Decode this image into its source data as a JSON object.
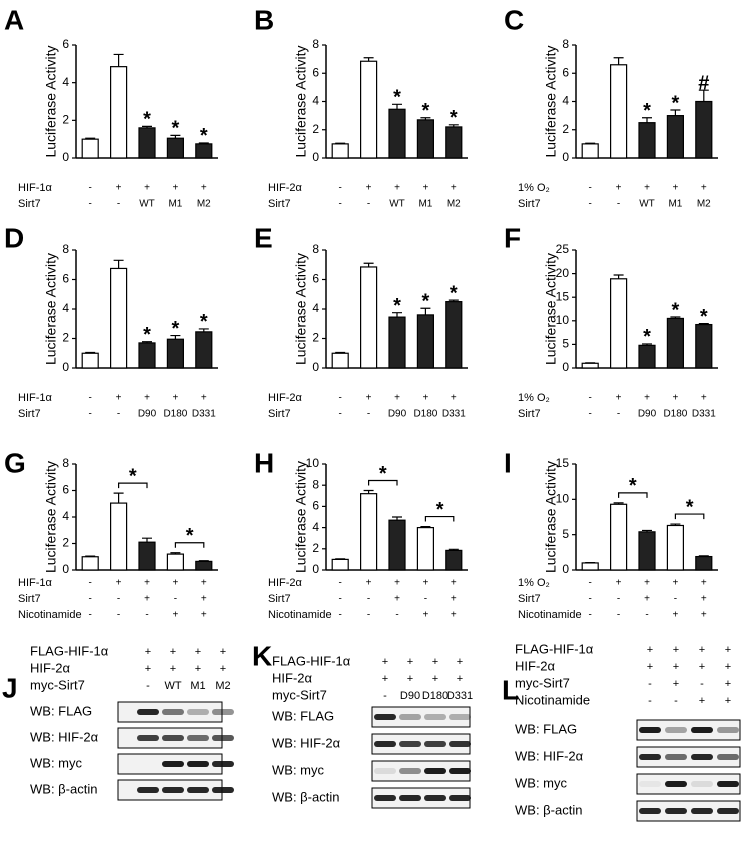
{
  "chart_data": [
    {
      "type": "bar",
      "panel": "A",
      "ylabel": "Luciferase Activity",
      "ylim": [
        0,
        6
      ],
      "yticks": [
        0,
        2,
        4,
        6
      ],
      "values": [
        1,
        4.85,
        1.6,
        1.05,
        0.75
      ],
      "errors": [
        0.05,
        0.65,
        0.08,
        0.15,
        0.05
      ],
      "colors": [
        "#ffffff",
        "#ffffff",
        "#222222",
        "#222222",
        "#222222"
      ],
      "conditions": [
        {
          "name": "HIF-1α",
          "values": [
            "-",
            "+",
            "+",
            "+",
            "+"
          ]
        },
        {
          "name": "Sirt7",
          "values": [
            "-",
            "-",
            "WT",
            "M1",
            "M2"
          ]
        }
      ],
      "annotations": [
        null,
        null,
        "*",
        "*",
        "*"
      ]
    },
    {
      "type": "bar",
      "panel": "B",
      "ylabel": "Luciferase Activity",
      "ylim": [
        0,
        8
      ],
      "yticks": [
        0,
        2,
        4,
        6,
        8
      ],
      "values": [
        1,
        6.85,
        3.45,
        2.7,
        2.2
      ],
      "errors": [
        0.05,
        0.25,
        0.35,
        0.15,
        0.15
      ],
      "colors": [
        "#ffffff",
        "#ffffff",
        "#222222",
        "#222222",
        "#222222"
      ],
      "conditions": [
        {
          "name": "HIF-2α",
          "values": [
            "-",
            "+",
            "+",
            "+",
            "+"
          ]
        },
        {
          "name": "Sirt7",
          "values": [
            "-",
            "-",
            "WT",
            "M1",
            "M2"
          ]
        }
      ],
      "annotations": [
        null,
        null,
        "*",
        "*",
        "*"
      ]
    },
    {
      "type": "bar",
      "panel": "C",
      "ylabel": "Luciferase Activity",
      "ylim": [
        0,
        8
      ],
      "yticks": [
        0,
        2,
        4,
        6,
        8
      ],
      "values": [
        1,
        6.6,
        2.5,
        3.0,
        4.0
      ],
      "errors": [
        0.05,
        0.5,
        0.35,
        0.4,
        0.8
      ],
      "colors": [
        "#ffffff",
        "#ffffff",
        "#222222",
        "#222222",
        "#222222"
      ],
      "conditions": [
        {
          "name": "1% O₂",
          "values": [
            "-",
            "+",
            "+",
            "+",
            "+"
          ]
        },
        {
          "name": "Sirt7",
          "values": [
            "-",
            "-",
            "WT",
            "M1",
            "M2"
          ]
        }
      ],
      "annotations": [
        null,
        null,
        "*",
        "*",
        "#"
      ]
    },
    {
      "type": "bar",
      "panel": "D",
      "ylabel": "Luciferase Activity",
      "ylim": [
        0,
        8
      ],
      "yticks": [
        0,
        2,
        4,
        6,
        8
      ],
      "values": [
        1,
        6.75,
        1.7,
        1.95,
        2.45
      ],
      "errors": [
        0.05,
        0.55,
        0.08,
        0.25,
        0.2
      ],
      "colors": [
        "#ffffff",
        "#ffffff",
        "#222222",
        "#222222",
        "#222222"
      ],
      "conditions": [
        {
          "name": "HIF-1α",
          "values": [
            "-",
            "+",
            "+",
            "+",
            "+"
          ]
        },
        {
          "name": "Sirt7",
          "values": [
            "-",
            "-",
            "D90",
            "D180",
            "D331"
          ]
        }
      ],
      "annotations": [
        null,
        null,
        "*",
        "*",
        "*"
      ]
    },
    {
      "type": "bar",
      "panel": "E",
      "ylabel": "Luciferase Activity",
      "ylim": [
        0,
        8
      ],
      "yticks": [
        0,
        2,
        4,
        6,
        8
      ],
      "values": [
        1,
        6.85,
        3.45,
        3.6,
        4.5
      ],
      "errors": [
        0.05,
        0.25,
        0.3,
        0.45,
        0.1
      ],
      "colors": [
        "#ffffff",
        "#ffffff",
        "#222222",
        "#222222",
        "#222222"
      ],
      "conditions": [
        {
          "name": "HIF-2α",
          "values": [
            "-",
            "+",
            "+",
            "+",
            "+"
          ]
        },
        {
          "name": "Sirt7",
          "values": [
            "-",
            "-",
            "D90",
            "D180",
            "D331"
          ]
        }
      ],
      "annotations": [
        null,
        null,
        "*",
        "*",
        "*"
      ]
    },
    {
      "type": "bar",
      "panel": "F",
      "ylabel": "Luciferase Activity",
      "ylim": [
        0,
        25
      ],
      "yticks": [
        0,
        5,
        10,
        15,
        20,
        25
      ],
      "values": [
        1,
        18.9,
        4.8,
        10.5,
        9.2
      ],
      "errors": [
        0.1,
        0.8,
        0.3,
        0.3,
        0.2
      ],
      "colors": [
        "#ffffff",
        "#ffffff",
        "#222222",
        "#222222",
        "#222222"
      ],
      "conditions": [
        {
          "name": "1% O₂",
          "values": [
            "-",
            "+",
            "+",
            "+",
            "+"
          ]
        },
        {
          "name": "Sirt7",
          "values": [
            "-",
            "-",
            "D90",
            "D180",
            "D331"
          ]
        }
      ],
      "annotations": [
        null,
        null,
        "*",
        "*",
        "*"
      ]
    },
    {
      "type": "bar",
      "panel": "G",
      "ylabel": "Luciferase Activity",
      "ylim": [
        0,
        8
      ],
      "yticks": [
        0,
        2,
        4,
        6,
        8
      ],
      "values": [
        1,
        5.05,
        2.1,
        1.2,
        0.65
      ],
      "errors": [
        0.05,
        0.75,
        0.3,
        0.1,
        0.05
      ],
      "colors": [
        "#ffffff",
        "#ffffff",
        "#222222",
        "#ffffff",
        "#222222"
      ],
      "conditions": [
        {
          "name": "HIF-1α",
          "values": [
            "-",
            "+",
            "+",
            "+",
            "+"
          ]
        },
        {
          "name": "Sirt7",
          "values": [
            "-",
            "-",
            "+",
            "-",
            "+"
          ]
        },
        {
          "name": "Nicotinamide",
          "values": [
            "-",
            "-",
            "-",
            "+",
            "+"
          ]
        }
      ],
      "comparisons": [
        {
          "bars": [
            1,
            2
          ],
          "label": "*"
        },
        {
          "bars": [
            3,
            4
          ],
          "label": "*"
        }
      ]
    },
    {
      "type": "bar",
      "panel": "H",
      "ylabel": "Luciferase Activity",
      "ylim": [
        0,
        10
      ],
      "yticks": [
        0,
        2,
        4,
        6,
        8,
        10
      ],
      "values": [
        1,
        7.2,
        4.7,
        4.0,
        1.85
      ],
      "errors": [
        0.05,
        0.3,
        0.3,
        0.1,
        0.1
      ],
      "colors": [
        "#ffffff",
        "#ffffff",
        "#222222",
        "#ffffff",
        "#222222"
      ],
      "conditions": [
        {
          "name": "HIF-2α",
          "values": [
            "-",
            "+",
            "+",
            "+",
            "+"
          ]
        },
        {
          "name": "Sirt7",
          "values": [
            "-",
            "-",
            "+",
            "-",
            "+"
          ]
        },
        {
          "name": "Nicotinamide",
          "values": [
            "-",
            "-",
            "-",
            "+",
            "+"
          ]
        }
      ],
      "comparisons": [
        {
          "bars": [
            1,
            2
          ],
          "label": "*"
        },
        {
          "bars": [
            3,
            4
          ],
          "label": "*"
        }
      ]
    },
    {
      "type": "bar",
      "panel": "I",
      "ylabel": "Luciferase Activity",
      "ylim": [
        0,
        15
      ],
      "yticks": [
        0,
        5,
        10,
        15
      ],
      "values": [
        1,
        9.3,
        5.4,
        6.3,
        1.9
      ],
      "errors": [
        0.05,
        0.2,
        0.2,
        0.2,
        0.1
      ],
      "colors": [
        "#ffffff",
        "#ffffff",
        "#222222",
        "#ffffff",
        "#222222"
      ],
      "conditions": [
        {
          "name": "1% O₂",
          "values": [
            "-",
            "+",
            "+",
            "+",
            "+"
          ]
        },
        {
          "name": "Sirt7",
          "values": [
            "-",
            "-",
            "+",
            "-",
            "+"
          ]
        },
        {
          "name": "Nicotinamide",
          "values": [
            "-",
            "-",
            "-",
            "+",
            "+"
          ]
        }
      ],
      "comparisons": [
        {
          "bars": [
            1,
            2
          ],
          "label": "*"
        },
        {
          "bars": [
            3,
            4
          ],
          "label": "*"
        }
      ]
    }
  ],
  "blots": [
    {
      "panel": "J",
      "conditions": [
        {
          "name": "FLAG-HIF-1α",
          "values": [
            "+",
            "+",
            "+",
            "+"
          ]
        },
        {
          "name": "HIF-2α",
          "values": [
            "+",
            "+",
            "+",
            "+"
          ]
        },
        {
          "name": "myc-Sirt7",
          "values": [
            "-",
            "WT",
            "M1",
            "M2"
          ]
        }
      ],
      "rows": [
        "WB: FLAG",
        "WB: HIF-2α",
        "WB: myc",
        "WB: β-actin"
      ]
    },
    {
      "panel": "K",
      "conditions": [
        {
          "name": "FLAG-HIF-1α",
          "values": [
            "+",
            "+",
            "+",
            "+"
          ]
        },
        {
          "name": "HIF-2α",
          "values": [
            "+",
            "+",
            "+",
            "+"
          ]
        },
        {
          "name": "myc-Sirt7",
          "values": [
            "-",
            "D90",
            "D180",
            "D331"
          ]
        }
      ],
      "rows": [
        "WB: FLAG",
        "WB: HIF-2α",
        "WB: myc",
        "WB: β-actin"
      ]
    },
    {
      "panel": "L",
      "conditions": [
        {
          "name": "FLAG-HIF-1α",
          "values": [
            "+",
            "+",
            "+",
            "+"
          ]
        },
        {
          "name": "HIF-2α",
          "values": [
            "+",
            "+",
            "+",
            "+"
          ]
        },
        {
          "name": "myc-Sirt7",
          "values": [
            "-",
            "+",
            "-",
            "+"
          ]
        },
        {
          "name": "Nicotinamide",
          "values": [
            "-",
            "-",
            "+",
            "+"
          ]
        }
      ],
      "rows": [
        "WB: FLAG",
        "WB: HIF-2α",
        "WB: myc",
        "WB: β-actin"
      ]
    }
  ]
}
